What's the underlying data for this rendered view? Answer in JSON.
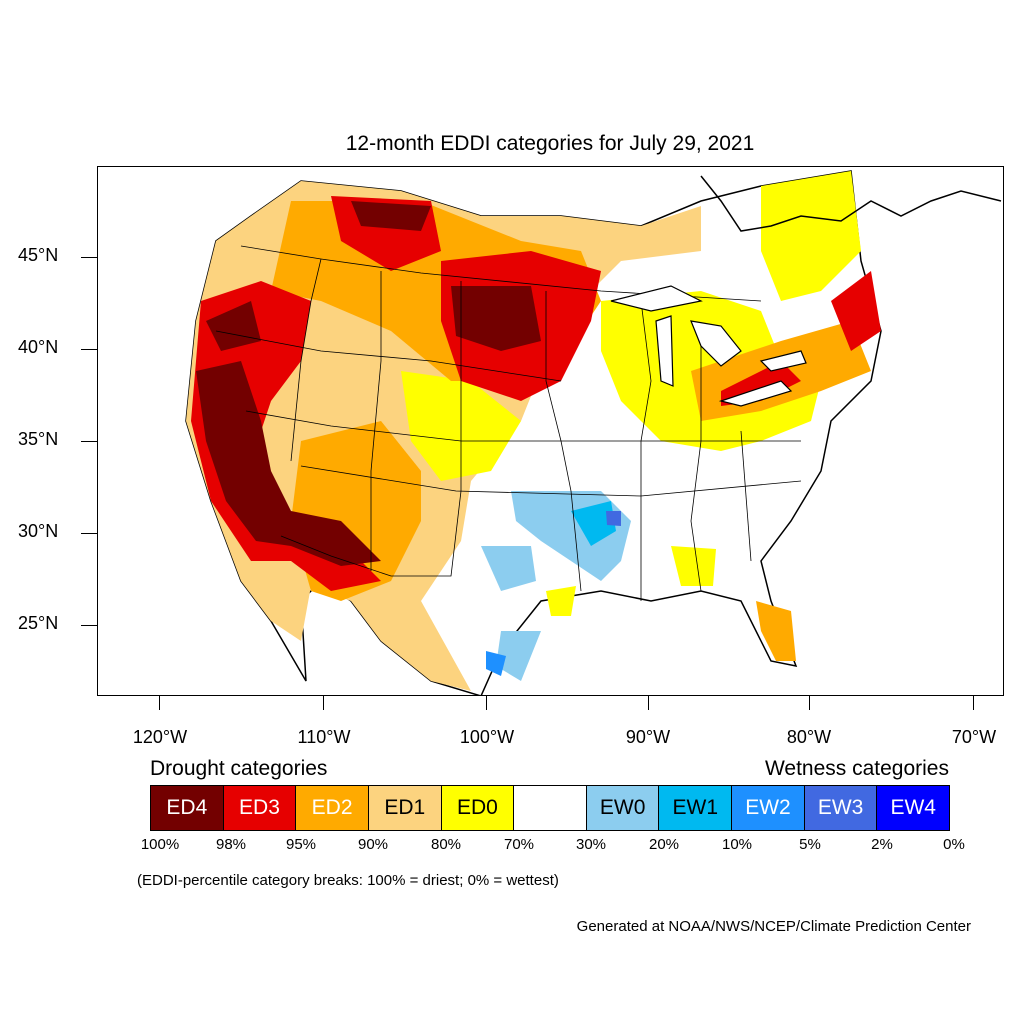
{
  "title": "12-month EDDI categories for July 29, 2021",
  "map": {
    "latitude_labels": [
      "45°N",
      "40°N",
      "35°N",
      "30°N",
      "25°N"
    ],
    "longitude_labels": [
      "120°W",
      "110°W",
      "100°W",
      "90°W",
      "80°W",
      "70°W"
    ]
  },
  "legend": {
    "drought_heading": "Drought categories",
    "wetness_heading": "Wetness categories",
    "categories": [
      {
        "label": "ED4",
        "color": "#730000",
        "text_color": "#ffffff"
      },
      {
        "label": "ED3",
        "color": "#e60000",
        "text_color": "#ffffff"
      },
      {
        "label": "ED2",
        "color": "#ffaa00",
        "text_color": "#ffffff"
      },
      {
        "label": "ED1",
        "color": "#fcd37f",
        "text_color": "#000000"
      },
      {
        "label": "ED0",
        "color": "#ffff00",
        "text_color": "#000000"
      },
      {
        "label": "",
        "color": "#ffffff",
        "text_color": "#000000"
      },
      {
        "label": "EW0",
        "color": "#8ccdef",
        "text_color": "#000000"
      },
      {
        "label": "EW1",
        "color": "#00b9f0",
        "text_color": "#000000"
      },
      {
        "label": "EW2",
        "color": "#1e90ff",
        "text_color": "#ffffff"
      },
      {
        "label": "EW3",
        "color": "#4169e1",
        "text_color": "#ffffff"
      },
      {
        "label": "EW4",
        "color": "#0000ff",
        "text_color": "#ffffff"
      }
    ],
    "percentiles": [
      "100%",
      "98%",
      "95%",
      "90%",
      "80%",
      "70%",
      "30%",
      "20%",
      "10%",
      "5%",
      "2%",
      "0%"
    ]
  },
  "note": "(EDDI-percentile category breaks: 100% = driest; 0% = wettest)",
  "credit": "Generated at NOAA/NWS/NCEP/Climate Prediction Center"
}
